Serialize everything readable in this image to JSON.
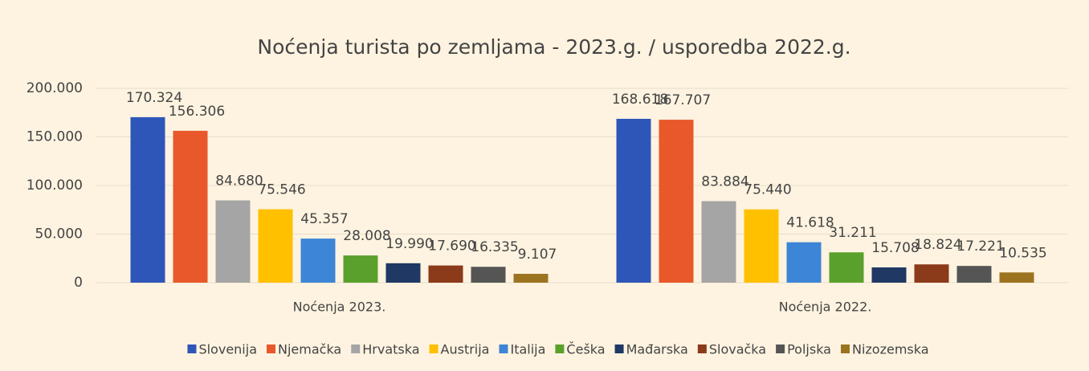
{
  "chart_data": {
    "type": "bar",
    "title": "Noćenja turista po zemljama - 2023.g. / usporedba 2022.g.",
    "categories": [
      "Noćenja 2023.",
      "Noćenja 2022."
    ],
    "series": [
      {
        "name": "Slovenija",
        "color": "#2e56b8",
        "values": [
          170324,
          168618
        ],
        "value_labels": [
          "170.324",
          "168.618"
        ]
      },
      {
        "name": "Njemačka",
        "color": "#e8582a",
        "values": [
          156306,
          167707
        ],
        "value_labels": [
          "156.306",
          "167.707"
        ]
      },
      {
        "name": "Hrvatska",
        "color": "#a5a5a5",
        "values": [
          84680,
          83884
        ],
        "value_labels": [
          "84.680",
          "83.884"
        ]
      },
      {
        "name": "Austrija",
        "color": "#ffc000",
        "values": [
          75546,
          75440
        ],
        "value_labels": [
          "75.546",
          "75.440"
        ]
      },
      {
        "name": "Italija",
        "color": "#3d85d6",
        "values": [
          45357,
          41618
        ],
        "value_labels": [
          "45.357",
          "41.618"
        ]
      },
      {
        "name": "Češka",
        "color": "#5aa02c",
        "values": [
          28008,
          31211
        ],
        "value_labels": [
          "28.008",
          "31.211"
        ]
      },
      {
        "name": "Mađarska",
        "color": "#1f3864",
        "values": [
          19990,
          15708
        ],
        "value_labels": [
          "19.990",
          "15.708"
        ]
      },
      {
        "name": "Slovačka",
        "color": "#8b3a1a",
        "values": [
          17690,
          18824
        ],
        "value_labels": [
          "17.690",
          "18.824"
        ]
      },
      {
        "name": "Poljska",
        "color": "#555555",
        "values": [
          16335,
          17221
        ],
        "value_labels": [
          "16.335",
          "17.221"
        ]
      },
      {
        "name": "Nizozemska",
        "color": "#9c7420",
        "values": [
          9107,
          10535
        ],
        "value_labels": [
          "9.107",
          "10.535"
        ]
      }
    ],
    "ylim": [
      0,
      200000
    ],
    "yticks": [
      0,
      {
        "value": 50000,
        "label": "50.000"
      },
      {
        "value": 100000,
        "label": "100.000"
      },
      {
        "value": 150000,
        "label": "150.000"
      },
      {
        "value": 200000,
        "label": "200.000"
      }
    ],
    "grid": true,
    "legend": "bottom"
  }
}
